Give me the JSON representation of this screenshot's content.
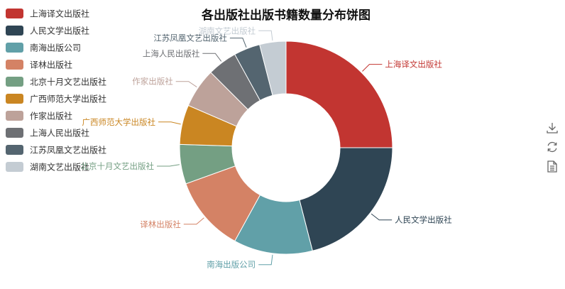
{
  "chart_data": {
    "type": "pie",
    "donut": true,
    "title": "各出版社出版书籍数量分布饼图",
    "legend_position": "top-left",
    "categories": [
      "上海译文出版社",
      "人民文学出版社",
      "南海出版公司",
      "译林出版社",
      "北京十月文艺出版社",
      "广西师范大学出版社",
      "作家出版社",
      "上海人民出版社",
      "江苏凤凰文艺出版社",
      "湖南文艺出版社"
    ],
    "values": [
      25,
      21,
      12,
      11.5,
      6,
      6,
      6,
      4.5,
      4,
      4
    ],
    "colors": [
      "#c23531",
      "#2f4554",
      "#61a0a8",
      "#d48265",
      "#749f83",
      "#ca8622",
      "#bda29a",
      "#6e7074",
      "#546570",
      "#c4ccd3"
    ]
  },
  "toolbox": {
    "icons": [
      "download-icon",
      "refresh-icon",
      "data-view-icon"
    ]
  }
}
